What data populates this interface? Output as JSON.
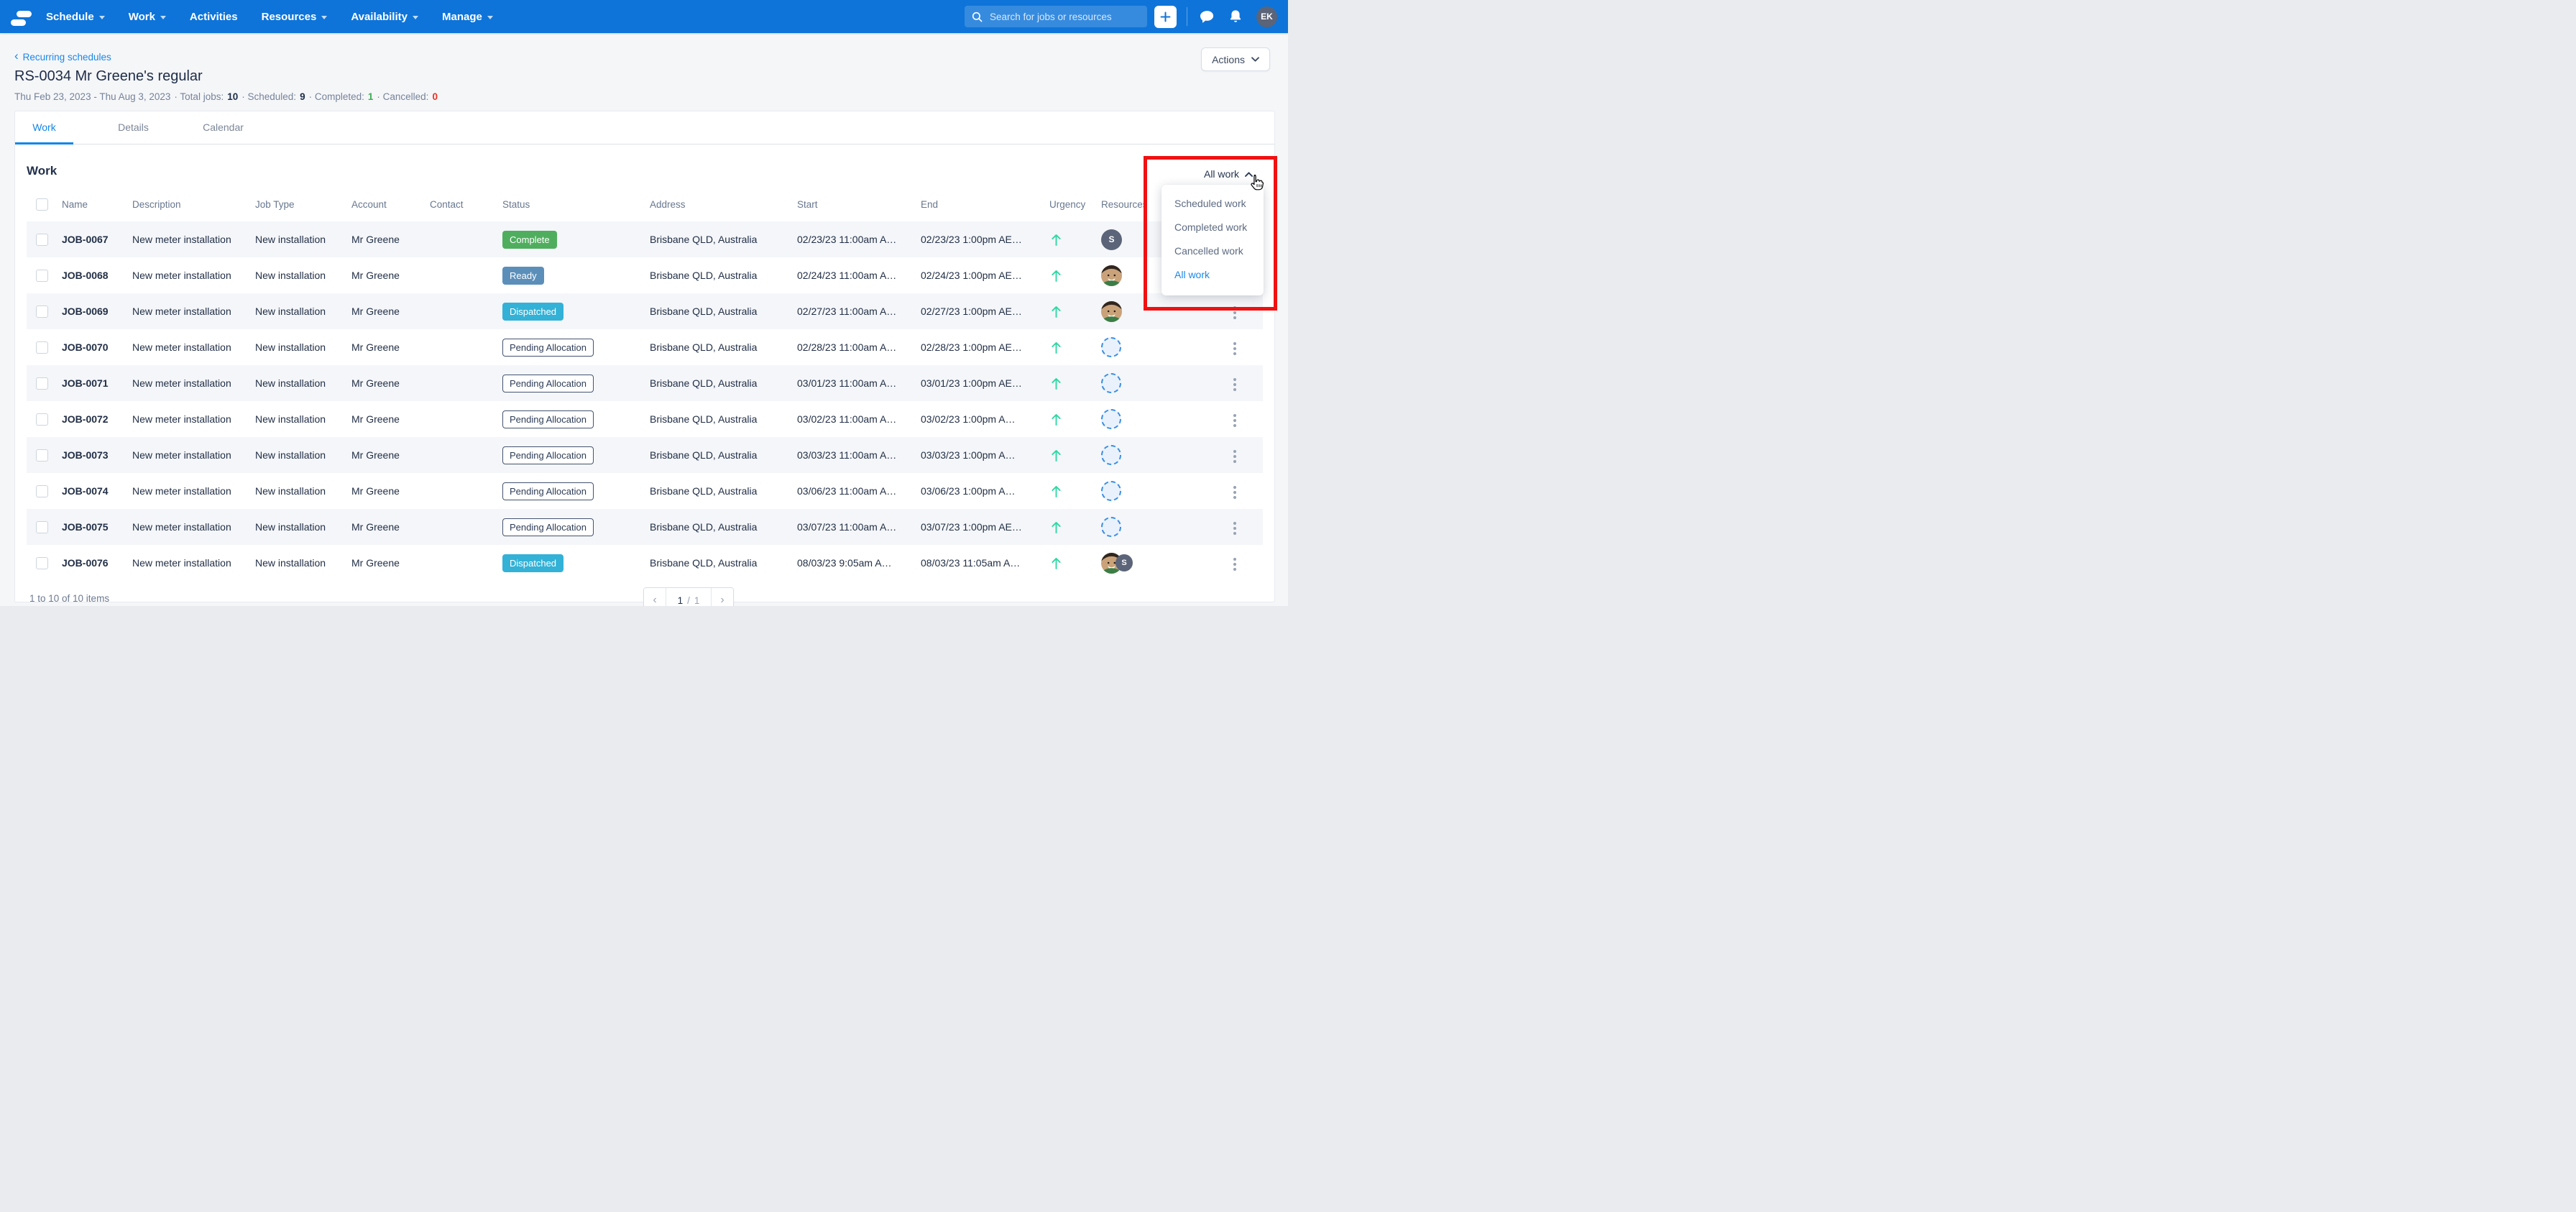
{
  "nav": {
    "items": [
      {
        "label": "Schedule",
        "has_caret": true
      },
      {
        "label": "Work",
        "has_caret": true
      },
      {
        "label": "Activities",
        "has_caret": false
      },
      {
        "label": "Resources",
        "has_caret": true
      },
      {
        "label": "Availability",
        "has_caret": true
      },
      {
        "label": "Manage",
        "has_caret": true
      }
    ],
    "search_placeholder": "Search for jobs or resources",
    "user_initials": "EK"
  },
  "breadcrumb": {
    "label": "Recurring schedules"
  },
  "header": {
    "title": "RS-0034 Mr Greene's regular",
    "actions_label": "Actions",
    "summary": {
      "date_range": "Thu Feb 23, 2023 - Thu Aug 3, 2023",
      "total_label": "· Total jobs:",
      "total_value": "10",
      "scheduled_label": "· Scheduled:",
      "scheduled_value": "9",
      "completed_label": "· Completed:",
      "completed_value": "1",
      "cancelled_label": "· Cancelled:",
      "cancelled_value": "0"
    }
  },
  "tabs": [
    {
      "label": "Work",
      "active": true
    },
    {
      "label": "Details",
      "active": false
    },
    {
      "label": "Calendar",
      "active": false
    }
  ],
  "work_section": {
    "heading": "Work",
    "filter_label": "All work"
  },
  "dropdown": {
    "items": [
      "Scheduled work",
      "Completed work",
      "Cancelled work",
      "All work"
    ],
    "selected": "All work"
  },
  "table": {
    "columns": [
      "Name",
      "Description",
      "Job Type",
      "Account",
      "Contact",
      "Status",
      "Address",
      "Start",
      "End",
      "Urgency",
      "Resources"
    ],
    "rows": [
      {
        "name": "JOB-0067",
        "description": "New meter installation",
        "job_type": "New installation",
        "account": "Mr Greene",
        "contact": "",
        "status": "Complete",
        "status_type": "complete",
        "address": "Brisbane QLD, Australia",
        "start": "02/23/23 11:00am A…",
        "end": "02/23/23 1:00pm AE…",
        "urgency": "up",
        "resources": [
          {
            "type": "initial",
            "label": "S"
          }
        ],
        "menu": true
      },
      {
        "name": "JOB-0068",
        "description": "New meter installation",
        "job_type": "New installation",
        "account": "Mr Greene",
        "contact": "",
        "status": "Ready",
        "status_type": "ready",
        "address": "Brisbane QLD, Australia",
        "start": "02/24/23 11:00am A…",
        "end": "02/24/23 1:00pm AE…",
        "urgency": "up",
        "resources": [
          {
            "type": "photo"
          }
        ],
        "menu": true
      },
      {
        "name": "JOB-0069",
        "description": "New meter installation",
        "job_type": "New installation",
        "account": "Mr Greene",
        "contact": "",
        "status": "Dispatched",
        "status_type": "dispatched",
        "address": "Brisbane QLD, Australia",
        "start": "02/27/23 11:00am A…",
        "end": "02/27/23 1:00pm AE…",
        "urgency": "up",
        "resources": [
          {
            "type": "photo"
          }
        ],
        "menu": true
      },
      {
        "name": "JOB-0070",
        "description": "New meter installation",
        "job_type": "New installation",
        "account": "Mr Greene",
        "contact": "",
        "status": "Pending Allocation",
        "status_type": "pending",
        "address": "Brisbane QLD, Australia",
        "start": "02/28/23 11:00am A…",
        "end": "02/28/23 1:00pm AE…",
        "urgency": "up",
        "resources": [
          {
            "type": "empty"
          }
        ],
        "menu": true
      },
      {
        "name": "JOB-0071",
        "description": "New meter installation",
        "job_type": "New installation",
        "account": "Mr Greene",
        "contact": "",
        "status": "Pending Allocation",
        "status_type": "pending",
        "address": "Brisbane QLD, Australia",
        "start": "03/01/23 11:00am A…",
        "end": "03/01/23 1:00pm AE…",
        "urgency": "up",
        "resources": [
          {
            "type": "empty"
          }
        ],
        "menu": true
      },
      {
        "name": "JOB-0072",
        "description": "New meter installation",
        "job_type": "New installation",
        "account": "Mr Greene",
        "contact": "",
        "status": "Pending Allocation",
        "status_type": "pending",
        "address": "Brisbane QLD, Australia",
        "start": "03/02/23 11:00am A…",
        "end": "03/02/23 1:00pm A…",
        "urgency": "up",
        "resources": [
          {
            "type": "empty"
          }
        ],
        "menu": true
      },
      {
        "name": "JOB-0073",
        "description": "New meter installation",
        "job_type": "New installation",
        "account": "Mr Greene",
        "contact": "",
        "status": "Pending Allocation",
        "status_type": "pending",
        "address": "Brisbane QLD, Australia",
        "start": "03/03/23 11:00am A…",
        "end": "03/03/23 1:00pm A…",
        "urgency": "up",
        "resources": [
          {
            "type": "empty"
          }
        ],
        "menu": true
      },
      {
        "name": "JOB-0074",
        "description": "New meter installation",
        "job_type": "New installation",
        "account": "Mr Greene",
        "contact": "",
        "status": "Pending Allocation",
        "status_type": "pending",
        "address": "Brisbane QLD, Australia",
        "start": "03/06/23 11:00am A…",
        "end": "03/06/23 1:00pm A…",
        "urgency": "up",
        "resources": [
          {
            "type": "empty"
          }
        ],
        "menu": true
      },
      {
        "name": "JOB-0075",
        "description": "New meter installation",
        "job_type": "New installation",
        "account": "Mr Greene",
        "contact": "",
        "status": "Pending Allocation",
        "status_type": "pending",
        "address": "Brisbane QLD, Australia",
        "start": "03/07/23 11:00am A…",
        "end": "03/07/23 1:00pm AE…",
        "urgency": "up",
        "resources": [
          {
            "type": "empty"
          }
        ],
        "menu": true
      },
      {
        "name": "JOB-0076",
        "description": "New meter installation",
        "job_type": "New installation",
        "account": "Mr Greene",
        "contact": "",
        "status": "Dispatched",
        "status_type": "dispatched",
        "address": "Brisbane QLD, Australia",
        "start": "08/03/23 9:05am A…",
        "end": "08/03/23 11:05am A…",
        "urgency": "up",
        "resources": [
          {
            "type": "photo"
          },
          {
            "type": "initial",
            "label": "S"
          }
        ],
        "menu": true
      }
    ]
  },
  "footer": {
    "summary": "1 to 10 of 10 items",
    "prev": "‹",
    "current": "1",
    "separator": "/",
    "total": "1",
    "next": "›"
  },
  "colors": {
    "nav_background": "#0e74d9",
    "accent_blue": "#1186e8",
    "status_complete": "#4fae5e",
    "status_ready": "#5b8fba",
    "status_dispatched": "#33b1d6",
    "status_pending_border": "#44536e",
    "urgency_arrow": "#2fd7a4",
    "annotation_red": "#f01111",
    "scheduled_green": "#3bae55",
    "cancelled_red": "#ed3124"
  }
}
